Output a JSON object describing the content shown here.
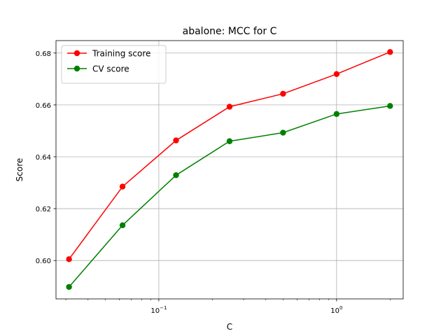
{
  "chart_data": {
    "type": "line",
    "title": "abalone: MCC for C",
    "xlabel": "C",
    "ylabel": "Score",
    "xscale": "log",
    "xlim": [
      0.0264,
      2.37
    ],
    "ylim": [
      0.5852,
      0.6848
    ],
    "x": [
      0.03125,
      0.0625,
      0.125,
      0.25,
      0.5,
      1,
      2
    ],
    "series": [
      {
        "name": "Training score",
        "color": "#ff0000",
        "values": [
          0.6005,
          0.6285,
          0.6463,
          0.6593,
          0.6643,
          0.6719,
          0.6804
        ]
      },
      {
        "name": "CV score",
        "color": "#008000",
        "values": [
          0.5898,
          0.6136,
          0.6329,
          0.646,
          0.6493,
          0.6565,
          0.6596
        ]
      }
    ],
    "x_ticks": [
      {
        "value": 0.1,
        "base": "10",
        "exp": "−1"
      },
      {
        "value": 1,
        "base": "10",
        "exp": "0"
      }
    ],
    "y_ticks": [
      {
        "value": 0.6,
        "label": "0.60"
      },
      {
        "value": 0.62,
        "label": "0.62"
      },
      {
        "value": 0.64,
        "label": "0.64"
      },
      {
        "value": 0.66,
        "label": "0.66"
      },
      {
        "value": 0.68,
        "label": "0.68"
      }
    ],
    "grid": true,
    "legend_position": "top-left"
  }
}
